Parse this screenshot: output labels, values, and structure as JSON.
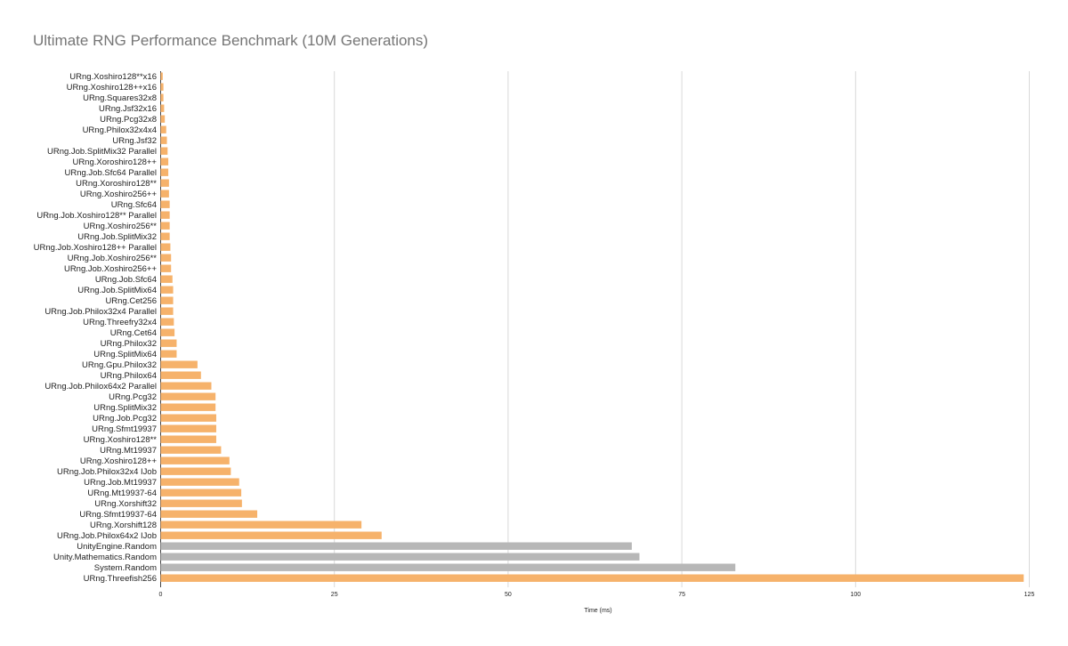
{
  "chart_data": {
    "type": "bar",
    "orientation": "horizontal",
    "title": "Ultimate RNG Performance Benchmark (10M Generations)",
    "xlabel": "Time (ms)",
    "ylabel": "",
    "xlim": [
      0,
      125
    ],
    "xticks": [
      0,
      25,
      50,
      75,
      100,
      125
    ],
    "grid": true,
    "legend": "none",
    "colors": {
      "urng": "#f6b26b",
      "builtin": "#b7b7b7",
      "grid": "#d9d9d9",
      "label": "#222222",
      "axis": "#444444"
    },
    "categories": [
      "URng.Xoshiro128**x16",
      "URng.Xoshiro128++x16",
      "URng.Squares32x8",
      "URng.Jsf32x16",
      "URng.Pcg32x8",
      "URng.Philox32x4x4",
      "URng.Jsf32",
      "URng.Job.SplitMix32 Parallel",
      "URng.Xoroshiro128++",
      "URng.Job.Sfc64 Parallel",
      "URng.Xoroshiro128**",
      "URng.Xoshiro256++",
      "URng.Sfc64",
      "URng.Job.Xoshiro128** Parallel",
      "URng.Xoshiro256**",
      "URng.Job.SplitMix32",
      "URng.Job.Xoshiro128++ Parallel",
      "URng.Job.Xoshiro256**",
      "URng.Job.Xoshiro256++",
      "URng.Job.Sfc64",
      "URng.Job.SplitMix64",
      "URng.Cet256",
      "URng.Job.Philox32x4 Parallel",
      "URng.Threefry32x4",
      "URng.Cet64",
      "URng.Philox32",
      "URng.SplitMix64",
      "URng.Gpu.Philox32",
      "URng.Philox64",
      "URng.Job.Philox64x2 Parallel",
      "URng.Pcg32",
      "URng.SplitMix32",
      "URng.Job.Pcg32",
      "URng.Sfmt19937",
      "URng.Xoshiro128**",
      "URng.Mt19937",
      "URng.Xoshiro128++",
      "URng.Job.Philox32x4 IJob",
      "URng.Job.Mt19937",
      "URng.Mt19937-64",
      "URng.Xorshift32",
      "URng.Sfmt19937-64",
      "URng.Xorshift128",
      "URng.Job.Philox64x2 IJob",
      "UnityEngine.Random",
      "Unity.Mathematics.Random",
      "System.Random",
      "URng.Threefish256"
    ],
    "values": [
      0.3,
      0.4,
      0.4,
      0.5,
      0.6,
      0.8,
      0.9,
      1.0,
      1.1,
      1.1,
      1.2,
      1.2,
      1.3,
      1.3,
      1.3,
      1.3,
      1.4,
      1.5,
      1.5,
      1.7,
      1.8,
      1.8,
      1.8,
      1.9,
      2.0,
      2.3,
      2.3,
      5.3,
      5.8,
      7.3,
      7.9,
      7.9,
      8.0,
      8.0,
      8.0,
      8.7,
      9.9,
      10.1,
      11.3,
      11.6,
      11.7,
      13.9,
      28.9,
      31.8,
      67.8,
      68.9,
      82.7,
      124.2
    ],
    "bar_groups": [
      "urng",
      "urng",
      "urng",
      "urng",
      "urng",
      "urng",
      "urng",
      "urng",
      "urng",
      "urng",
      "urng",
      "urng",
      "urng",
      "urng",
      "urng",
      "urng",
      "urng",
      "urng",
      "urng",
      "urng",
      "urng",
      "urng",
      "urng",
      "urng",
      "urng",
      "urng",
      "urng",
      "urng",
      "urng",
      "urng",
      "urng",
      "urng",
      "urng",
      "urng",
      "urng",
      "urng",
      "urng",
      "urng",
      "urng",
      "urng",
      "urng",
      "urng",
      "urng",
      "urng",
      "builtin",
      "builtin",
      "builtin",
      "urng"
    ]
  }
}
